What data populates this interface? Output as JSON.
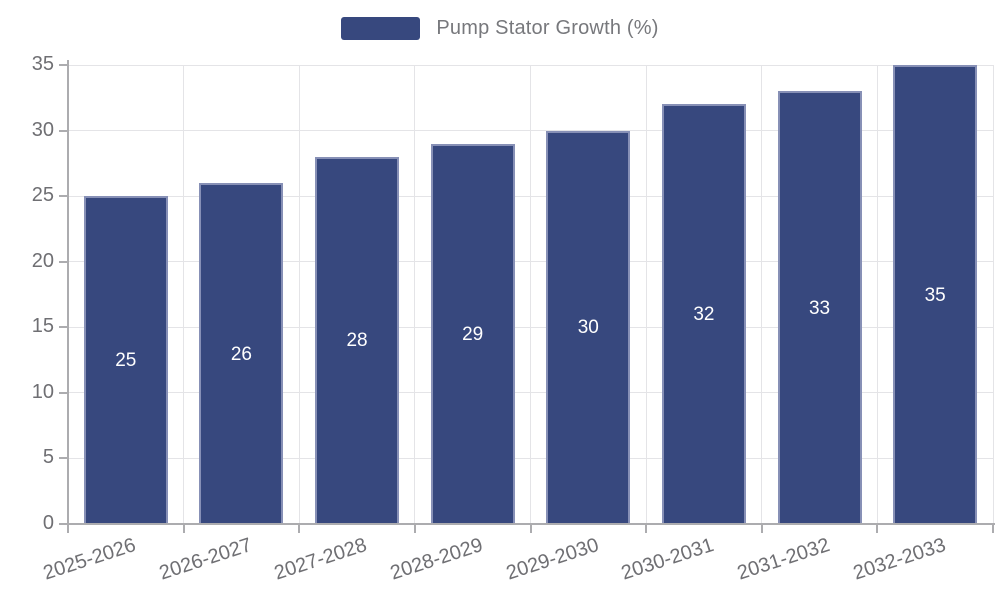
{
  "legend": {
    "items": [
      {
        "label": "Pump Stator Growth (%)"
      }
    ]
  },
  "colors": {
    "background": "#ffffff",
    "bar_fill": "#37487E",
    "bar_border": "#8790B6",
    "bar_label_text": "#ffffff",
    "grid_line": "#E4E4E7",
    "axis_line": "#ACACAF",
    "tick_text": "#6F6F73",
    "legend_text": "#77787C"
  },
  "chart_data": {
    "type": "bar",
    "title": "Pump Stator Growth (%)",
    "categories": [
      "2025-2026",
      "2026-2027",
      "2027-2028",
      "2028-2029",
      "2029-2030",
      "2030-2031",
      "2031-2032",
      "2032-2033"
    ],
    "values": [
      25,
      26,
      28,
      29,
      30,
      32,
      33,
      35
    ],
    "xlabel": "",
    "ylabel": "",
    "ylim": [
      0,
      35
    ],
    "yticks": [
      0,
      5,
      10,
      15,
      20,
      25,
      30,
      35
    ],
    "grid": true,
    "legend_position": "top-center",
    "bar_value_labels": "inside-center",
    "x_label_rotation_deg": -18
  }
}
